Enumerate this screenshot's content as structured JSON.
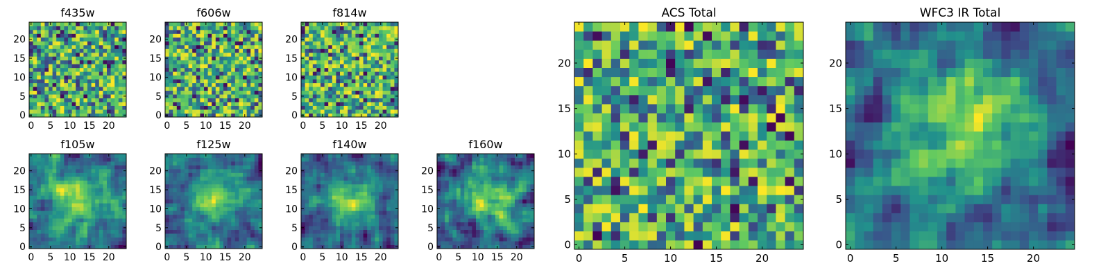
{
  "chart_data": [
    {
      "type": "heatmap",
      "title": "f435w",
      "colormap": "viridis",
      "grid_size": 25,
      "smooth": 0,
      "seed": 11,
      "xlim": [
        0,
        24
      ],
      "ylim": [
        0,
        24
      ],
      "xticks": [
        "0",
        "5",
        "10",
        "15",
        "20"
      ],
      "yticks": [
        "0",
        "5",
        "10",
        "15",
        "20"
      ]
    },
    {
      "type": "heatmap",
      "title": "f606w",
      "colormap": "viridis",
      "grid_size": 25,
      "smooth": 0,
      "seed": 23,
      "xlim": [
        0,
        24
      ],
      "ylim": [
        0,
        24
      ],
      "xticks": [
        "0",
        "5",
        "10",
        "15",
        "20"
      ],
      "yticks": [
        "0",
        "5",
        "10",
        "15",
        "20"
      ]
    },
    {
      "type": "heatmap",
      "title": "f814w",
      "colormap": "viridis",
      "grid_size": 25,
      "smooth": 0,
      "seed": 37,
      "xlim": [
        0,
        24
      ],
      "ylim": [
        0,
        24
      ],
      "xticks": [
        "0",
        "5",
        "10",
        "15",
        "20"
      ],
      "yticks": [
        "0",
        "5",
        "10",
        "15",
        "20"
      ]
    },
    {
      "type": "heatmap",
      "title": "f105w",
      "colormap": "viridis",
      "grid_size": 25,
      "smooth": 1,
      "seed": 41,
      "xlim": [
        0,
        24
      ],
      "ylim": [
        0,
        24
      ],
      "xticks": [
        "0",
        "5",
        "10",
        "15",
        "20"
      ],
      "yticks": [
        "0",
        "5",
        "10",
        "15",
        "20"
      ]
    },
    {
      "type": "heatmap",
      "title": "f125w",
      "colormap": "viridis",
      "grid_size": 25,
      "smooth": 1,
      "seed": 53,
      "xlim": [
        0,
        24
      ],
      "ylim": [
        0,
        24
      ],
      "xticks": [
        "0",
        "5",
        "10",
        "15",
        "20"
      ],
      "yticks": [
        "0",
        "5",
        "10",
        "15",
        "20"
      ]
    },
    {
      "type": "heatmap",
      "title": "f140w",
      "colormap": "viridis",
      "grid_size": 25,
      "smooth": 1,
      "seed": 67,
      "xlim": [
        0,
        24
      ],
      "ylim": [
        0,
        24
      ],
      "xticks": [
        "0",
        "5",
        "10",
        "15",
        "20"
      ],
      "yticks": [
        "0",
        "5",
        "10",
        "15",
        "20"
      ]
    },
    {
      "type": "heatmap",
      "title": "f160w",
      "colormap": "viridis",
      "grid_size": 25,
      "smooth": 1,
      "seed": 79,
      "xlim": [
        0,
        24
      ],
      "ylim": [
        0,
        24
      ],
      "xticks": [
        "0",
        "5",
        "10",
        "15",
        "20"
      ],
      "yticks": [
        "0",
        "5",
        "10",
        "15",
        "20"
      ]
    },
    {
      "type": "heatmap",
      "title": "ACS Total",
      "colormap": "viridis",
      "grid_size": 25,
      "smooth": 0,
      "seed": 97,
      "xlim": [
        0,
        24
      ],
      "ylim": [
        0,
        24
      ],
      "xticks": [
        "0",
        "5",
        "10",
        "15",
        "20"
      ],
      "yticks": [
        "0",
        "5",
        "10",
        "15",
        "20"
      ]
    },
    {
      "type": "heatmap",
      "title": "WFC3 IR Total",
      "colormap": "viridis",
      "grid_size": 25,
      "smooth": 1,
      "seed": 113,
      "xlim": [
        0,
        24
      ],
      "ylim": [
        0,
        24
      ],
      "xticks": [
        "0",
        "5",
        "10",
        "15",
        "20"
      ],
      "yticks": [
        "0",
        "5",
        "10",
        "15",
        "20"
      ]
    }
  ],
  "colors": {
    "viridis": [
      "#440154",
      "#3b528b",
      "#21918c",
      "#5ec962",
      "#fde725"
    ]
  }
}
